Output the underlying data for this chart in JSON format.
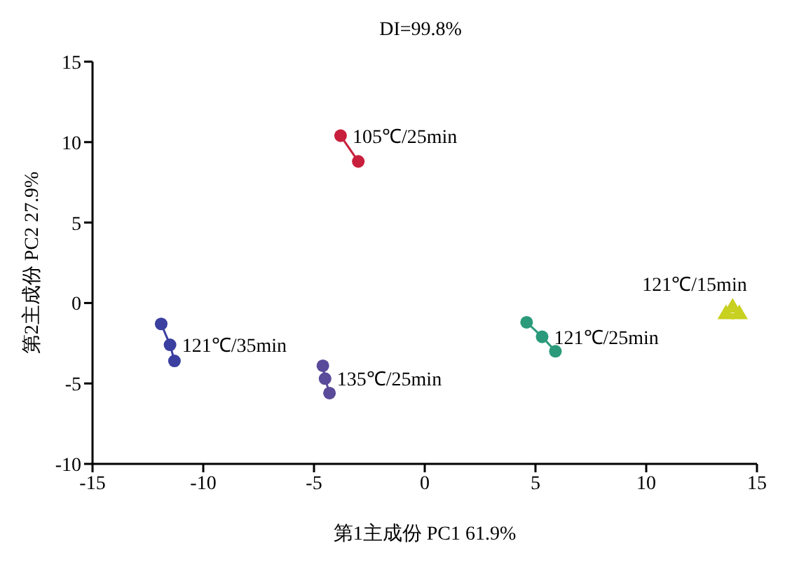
{
  "chart_data": {
    "type": "line",
    "title": "DI=99.8%",
    "xlabel": "第1主成份  PC1 61.9%",
    "ylabel": "第2主成份  PC2 27.9%",
    "xlim": [
      -15,
      15
    ],
    "xticks": [
      -15,
      -10,
      -5,
      0,
      5,
      10,
      15
    ],
    "ylim": [
      -10,
      15
    ],
    "yticks": [
      -10,
      -5,
      0,
      5,
      10,
      15
    ],
    "grid": false,
    "legend": false,
    "marker": "circle",
    "line_style": "solid",
    "series": [
      {
        "name": "105℃/25min",
        "color": "#c8203c",
        "x": [
          -3.8,
          -3.0
        ],
        "values": [
          10.4,
          8.8
        ]
      },
      {
        "name": "121℃/35min",
        "color": "#3a3fa0",
        "x": [
          -11.9,
          -11.5,
          -11.3
        ],
        "values": [
          -1.3,
          -2.6,
          -3.6
        ]
      },
      {
        "name": "135℃/25min",
        "color": "#5a4a9a",
        "x": [
          -4.6,
          -4.5,
          -4.3
        ],
        "values": [
          -3.9,
          -4.7,
          -5.6
        ]
      },
      {
        "name": "121℃/25min",
        "color": "#2a9a7a",
        "x": [
          4.6,
          5.3,
          5.9
        ],
        "values": [
          -1.2,
          -2.1,
          -3.0
        ]
      },
      {
        "name": "121℃/15min",
        "color": "#c8d020",
        "x": [
          13.9,
          14.2,
          13.6
        ],
        "values": [
          -0.3,
          -0.7,
          -0.7
        ],
        "marker": "triangle"
      }
    ]
  }
}
